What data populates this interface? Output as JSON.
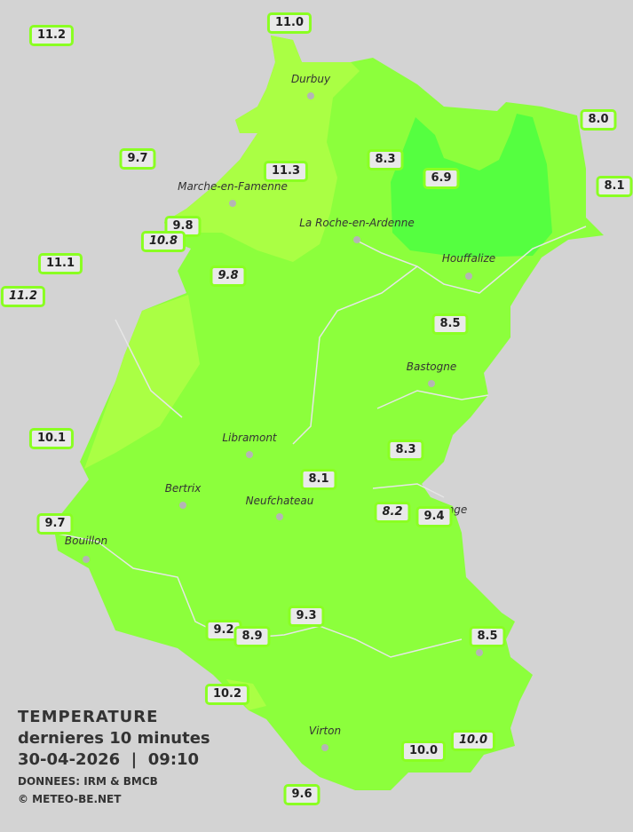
{
  "colors": {
    "background": "#d3d3d3",
    "zone_main": "#8cff3c",
    "zone_warm": "#aaff44",
    "zone_cool": "#55ff40",
    "label_border": "#8aff22"
  },
  "legend": {
    "title": "TEMPERATURE",
    "subtitle": "dernieres 10 minutes",
    "datetime": "30-04-2026  |  09:10",
    "source": "DONNEES: IRM & BMCB",
    "copyright": "© METEO-BE.NET"
  },
  "cities": [
    "Durbuy",
    "Marche-en-Famenne",
    "La Roche-en-Ardenne",
    "Houffalize",
    "Bastogne",
    "Libramont",
    "Bertrix",
    "Neufchateau",
    "nge",
    "Bouillon",
    "Virton"
  ],
  "stations": [
    {
      "value": "11.2",
      "italic": false
    },
    {
      "value": "11.0",
      "italic": false
    },
    {
      "value": "9.7",
      "italic": false
    },
    {
      "value": "8.0",
      "italic": false
    },
    {
      "value": "8.3",
      "italic": false
    },
    {
      "value": "11.3",
      "italic": false
    },
    {
      "value": "6.9",
      "italic": false
    },
    {
      "value": "8.1",
      "italic": false
    },
    {
      "value": "9.8",
      "italic": false
    },
    {
      "value": "10.8",
      "italic": true
    },
    {
      "value": "11.1",
      "italic": false
    },
    {
      "value": "11.2",
      "italic": true
    },
    {
      "value": "9.8",
      "italic": true
    },
    {
      "value": "8.5",
      "italic": false
    },
    {
      "value": "10.1",
      "italic": false
    },
    {
      "value": "8.3",
      "italic": false
    },
    {
      "value": "8.1",
      "italic": false
    },
    {
      "value": "8.2",
      "italic": true
    },
    {
      "value": "9.4",
      "italic": false
    },
    {
      "value": "9.7",
      "italic": false
    },
    {
      "value": "9.3",
      "italic": false
    },
    {
      "value": "9.2",
      "italic": false
    },
    {
      "value": "8.9",
      "italic": false
    },
    {
      "value": "8.5",
      "italic": false
    },
    {
      "value": "10.2",
      "italic": false
    },
    {
      "value": "10.0",
      "italic": false
    },
    {
      "value": "10.0",
      "italic": true
    },
    {
      "value": "9.6",
      "italic": false
    }
  ]
}
